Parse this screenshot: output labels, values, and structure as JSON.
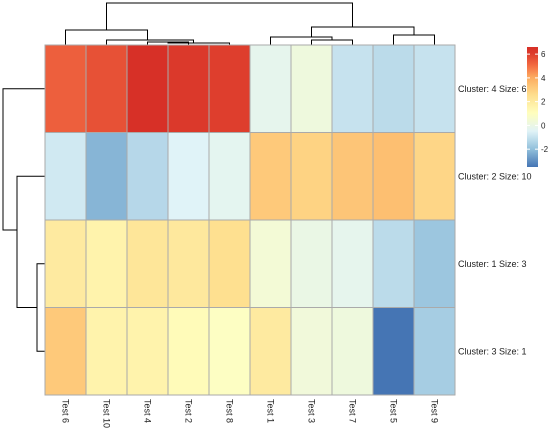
{
  "chart_data": {
    "type": "heatmap",
    "title": "",
    "xlabel": "",
    "ylabel": "",
    "columns": [
      "Test 6",
      "Test 10",
      "Test 4",
      "Test 2",
      "Test 8",
      "Test 1",
      "Test 3",
      "Test 7",
      "Test 5",
      "Test 9"
    ],
    "rows": [
      "Cluster: 4 Size: 6",
      "Cluster: 2 Size: 10",
      "Cluster: 1 Size: 3",
      "Cluster: 3 Size: 1"
    ],
    "values": [
      [
        5.3,
        5.6,
        6.3,
        6.1,
        6.0,
        -0.2,
        0.2,
        -1.0,
        -1.2,
        -1.0
      ],
      [
        -0.8,
        -2.2,
        -1.3,
        -0.5,
        -0.3,
        3.2,
        2.9,
        3.3,
        3.5,
        2.8
      ],
      [
        2.0,
        1.6,
        2.2,
        2.1,
        2.5,
        0.4,
        0.0,
        -0.2,
        -1.2,
        -1.8
      ],
      [
        3.2,
        1.6,
        1.6,
        1.2,
        0.9,
        2.0,
        0.3,
        0.2,
        -3.5,
        -1.6
      ]
    ],
    "color_scale": {
      "stops": [
        {
          "value": -3.5,
          "color": "#4575b4"
        },
        {
          "value": -2,
          "color": "#91bfdb"
        },
        {
          "value": -0.5,
          "color": "#e0f3f8"
        },
        {
          "value": 1,
          "color": "#ffffbf"
        },
        {
          "value": 2.5,
          "color": "#fee090"
        },
        {
          "value": 4,
          "color": "#fdae61"
        },
        {
          "value": 5,
          "color": "#f46d43"
        },
        {
          "value": 6.3,
          "color": "#d73027"
        }
      ]
    },
    "legend": {
      "ticks": [
        "6",
        "4",
        "2",
        "0",
        "-2"
      ],
      "tick_values": [
        6,
        4,
        2,
        0,
        -2
      ],
      "range": [
        -3.5,
        6.6
      ],
      "placement": "top-right"
    },
    "dendrograms": {
      "columns": true,
      "rows": true
    },
    "grid_color": "#aaaaaa"
  }
}
